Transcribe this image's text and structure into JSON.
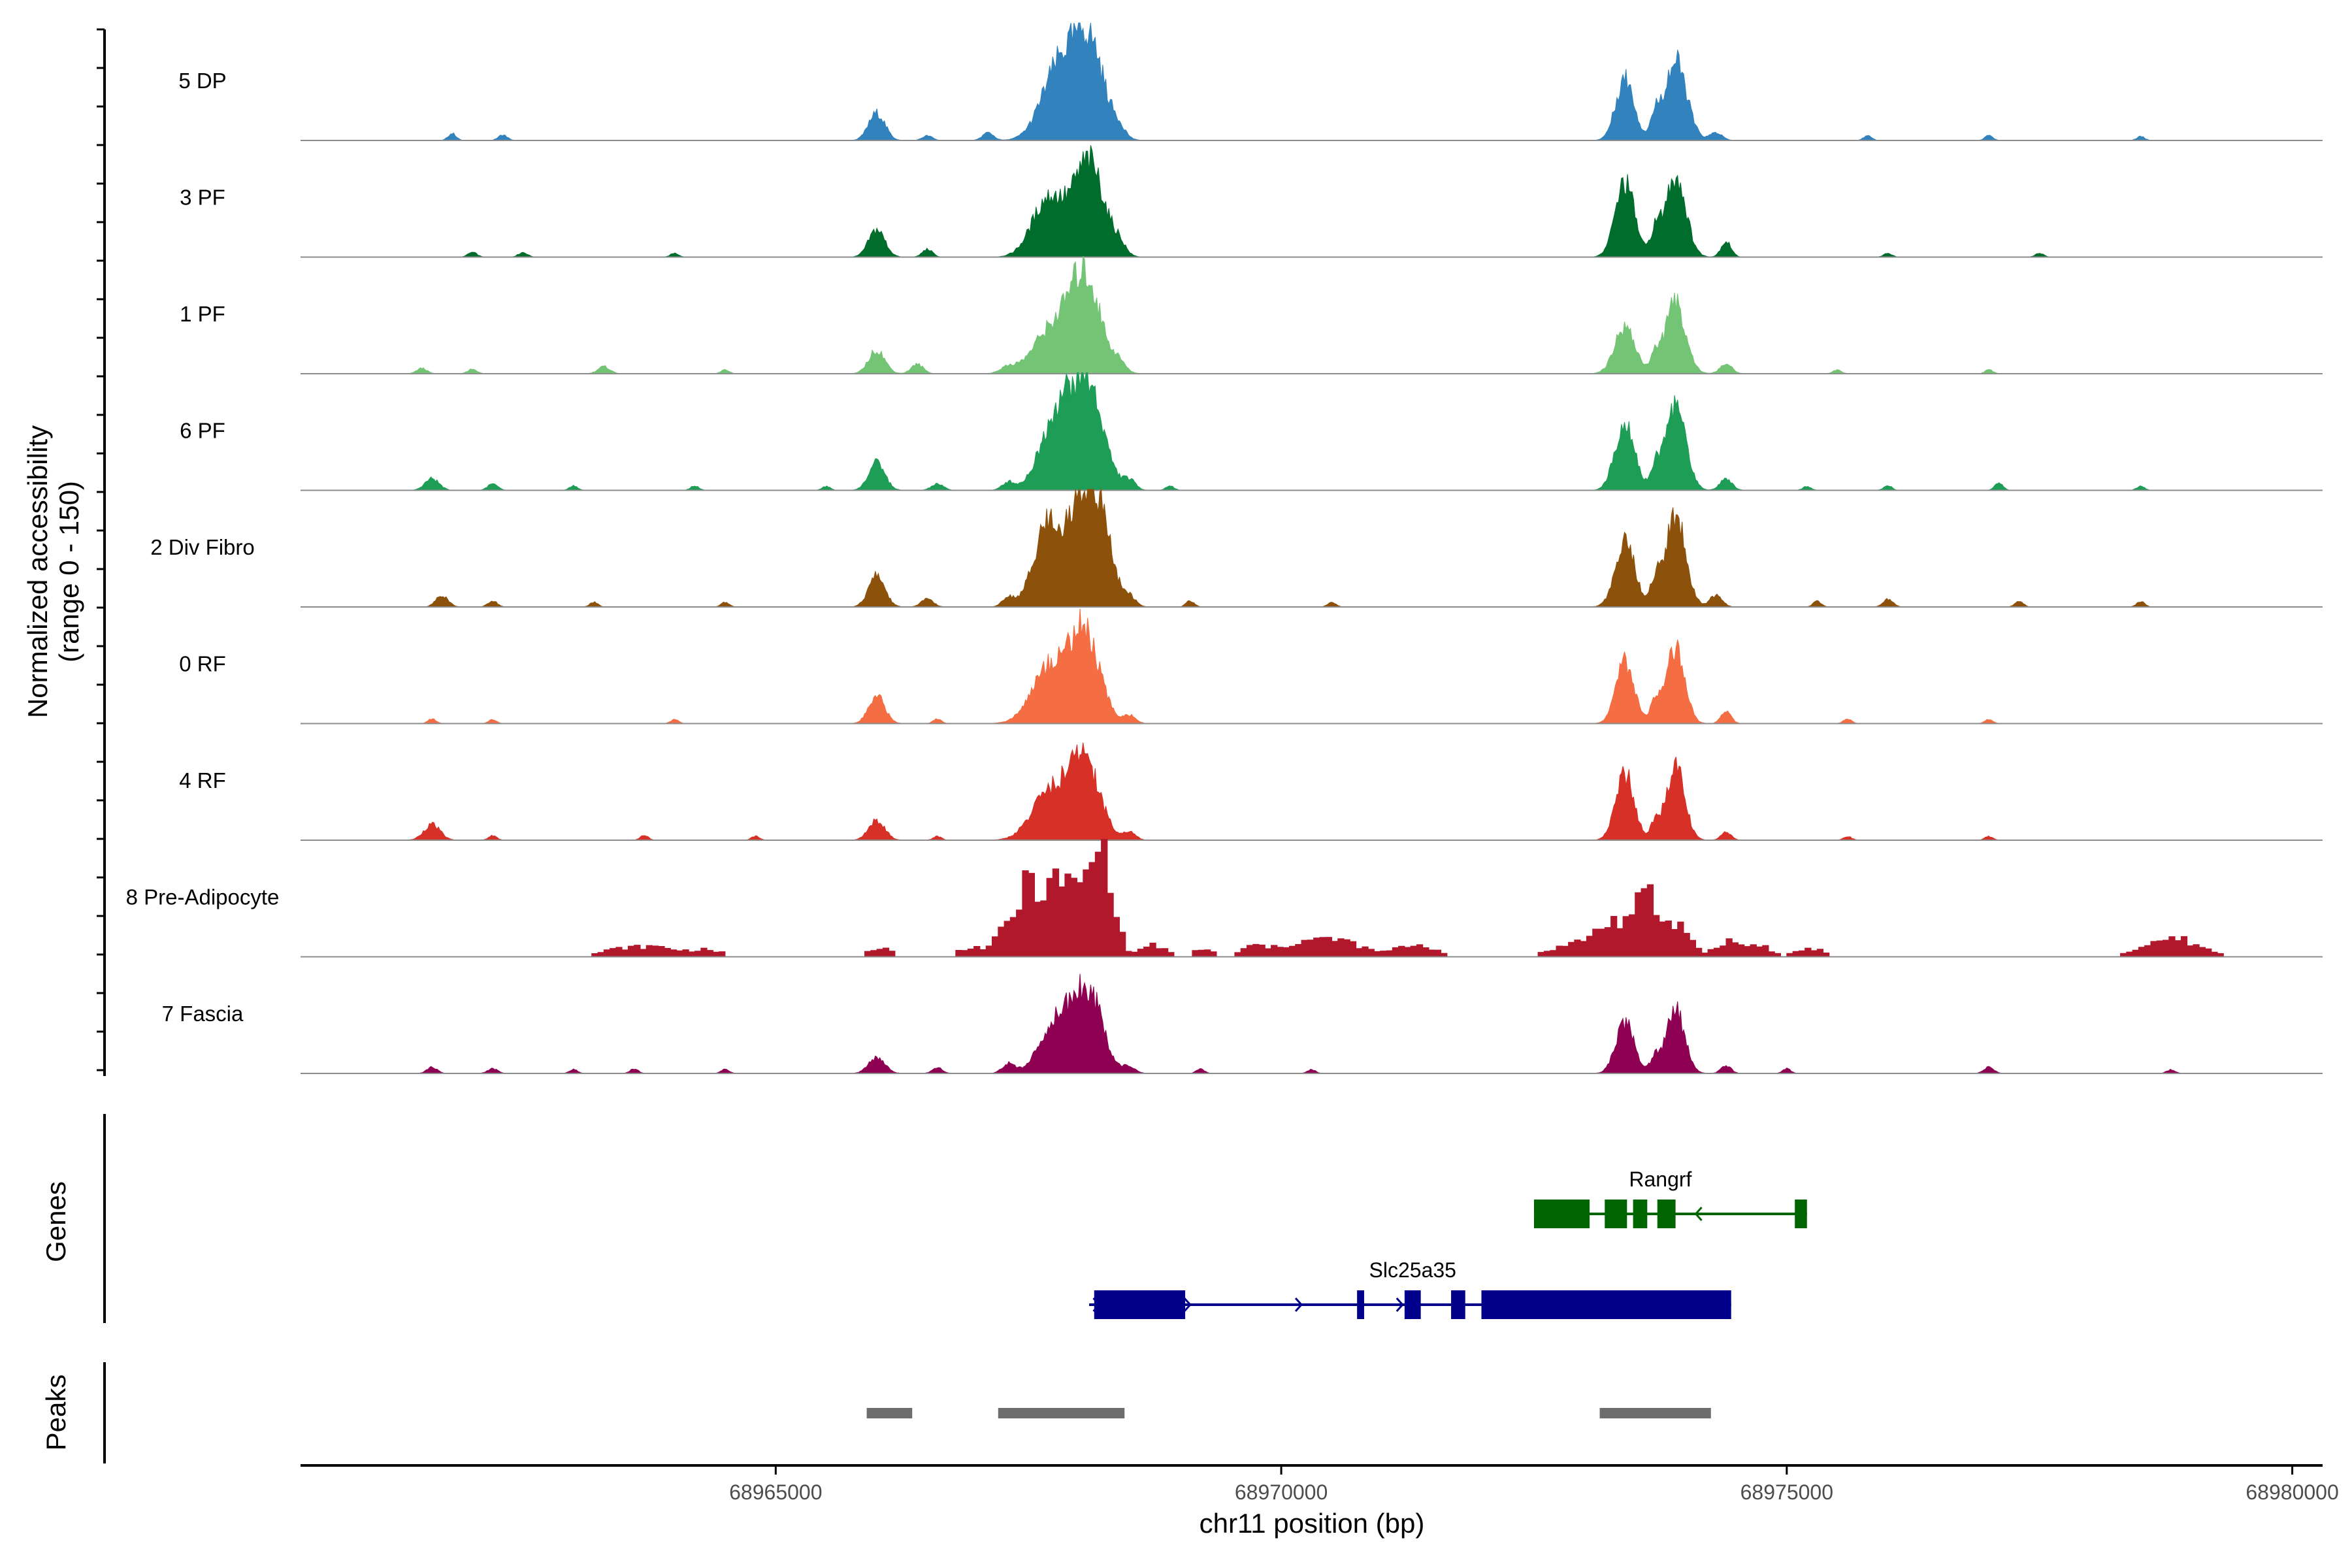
{
  "chart_data": {
    "type": "area",
    "title": "",
    "chromosome": "chr11",
    "xlabel": "chr11 position (bp)",
    "ylabel": "Normalized accessibility",
    "ylabel_range": "(range 0 - 150)",
    "xlim": [
      68960300,
      68980300
    ],
    "ylim": [
      0,
      150
    ],
    "x_ticks": [
      68965000,
      68970000,
      68975000,
      68980000
    ],
    "x_tick_labels": [
      "68965000",
      "68970000",
      "68975000",
      "68980000"
    ],
    "tracks": [
      {
        "name": "5 DP",
        "color": "#3182bd",
        "style": "smooth",
        "peaks": [
          [
            68961800,
            9,
            40
          ],
          [
            68962300,
            7,
            45
          ],
          [
            68966000,
            35,
            80
          ],
          [
            68966500,
            6,
            50
          ],
          [
            68967100,
            10,
            55
          ],
          [
            68967800,
            90,
            170
          ],
          [
            68968100,
            120,
            150
          ],
          [
            68968400,
            10,
            60
          ],
          [
            68973400,
            80,
            90
          ],
          [
            68973700,
            25,
            50
          ],
          [
            68973900,
            100,
            110
          ],
          [
            68974300,
            10,
            60
          ],
          [
            68975800,
            6,
            40
          ],
          [
            68977000,
            6,
            40
          ],
          [
            68978500,
            5,
            40
          ]
        ]
      },
      {
        "name": "3 PF",
        "color": "#006d2c",
        "style": "smooth",
        "peaks": [
          [
            68962000,
            6,
            45
          ],
          [
            68962500,
            6,
            45
          ],
          [
            68964000,
            5,
            40
          ],
          [
            68966000,
            35,
            80
          ],
          [
            68966500,
            10,
            50
          ],
          [
            68967700,
            75,
            160
          ],
          [
            68968100,
            120,
            150
          ],
          [
            68968400,
            12,
            60
          ],
          [
            68973400,
            95,
            95
          ],
          [
            68973700,
            30,
            50
          ],
          [
            68973900,
            105,
            100
          ],
          [
            68974400,
            20,
            50
          ],
          [
            68976000,
            5,
            40
          ],
          [
            68977500,
            5,
            40
          ]
        ]
      },
      {
        "name": "1 PF",
        "color": "#74c476",
        "style": "smooth",
        "peaks": [
          [
            68961500,
            7,
            50
          ],
          [
            68962000,
            6,
            45
          ],
          [
            68963300,
            9,
            60
          ],
          [
            68964500,
            5,
            40
          ],
          [
            68966000,
            30,
            80
          ],
          [
            68966400,
            12,
            60
          ],
          [
            68967300,
            8,
            80
          ],
          [
            68967700,
            50,
            170
          ],
          [
            68968050,
            125,
            160
          ],
          [
            68968400,
            10,
            60
          ],
          [
            68973400,
            60,
            100
          ],
          [
            68973700,
            20,
            50
          ],
          [
            68973900,
            90,
            100
          ],
          [
            68974400,
            12,
            60
          ],
          [
            68975500,
            5,
            40
          ],
          [
            68977000,
            5,
            40
          ]
        ]
      },
      {
        "name": "6 PF",
        "color": "#1d9d55",
        "style": "smooth",
        "peaks": [
          [
            68961600,
            15,
            70
          ],
          [
            68962200,
            8,
            50
          ],
          [
            68963000,
            6,
            40
          ],
          [
            68964200,
            6,
            40
          ],
          [
            68965500,
            5,
            40
          ],
          [
            68966000,
            35,
            80
          ],
          [
            68966600,
            8,
            60
          ],
          [
            68967300,
            10,
            60
          ],
          [
            68967800,
            100,
            170
          ],
          [
            68968100,
            120,
            150
          ],
          [
            68968500,
            12,
            60
          ],
          [
            68968900,
            6,
            40
          ],
          [
            68973400,
            90,
            95
          ],
          [
            68973700,
            25,
            50
          ],
          [
            68973900,
            110,
            100
          ],
          [
            68974400,
            15,
            60
          ],
          [
            68975200,
            5,
            40
          ],
          [
            68976000,
            6,
            40
          ],
          [
            68977100,
            10,
            40
          ],
          [
            68978500,
            5,
            40
          ]
        ]
      },
      {
        "name": "2 Div Fibro",
        "color": "#8c510a",
        "style": "smooth",
        "peaks": [
          [
            68961700,
            15,
            60
          ],
          [
            68962200,
            8,
            45
          ],
          [
            68963200,
            6,
            40
          ],
          [
            68964500,
            6,
            40
          ],
          [
            68966000,
            40,
            80
          ],
          [
            68966500,
            10,
            60
          ],
          [
            68967300,
            12,
            60
          ],
          [
            68967700,
            110,
            140
          ],
          [
            68968000,
            105,
            110
          ],
          [
            68968200,
            120,
            120
          ],
          [
            68968500,
            12,
            60
          ],
          [
            68969100,
            8,
            40
          ],
          [
            68970500,
            6,
            40
          ],
          [
            68973400,
            85,
            95
          ],
          [
            68973700,
            30,
            50
          ],
          [
            68973900,
            115,
            100
          ],
          [
            68974300,
            15,
            60
          ],
          [
            68975300,
            7,
            40
          ],
          [
            68976000,
            10,
            50
          ],
          [
            68977300,
            8,
            40
          ],
          [
            68978500,
            7,
            40
          ]
        ]
      },
      {
        "name": "0 RF",
        "color": "#f46d43",
        "style": "smooth",
        "peaks": [
          [
            68961600,
            6,
            40
          ],
          [
            68962200,
            5,
            40
          ],
          [
            68964000,
            5,
            40
          ],
          [
            68966000,
            35,
            80
          ],
          [
            68966600,
            6,
            40
          ],
          [
            68967700,
            70,
            170
          ],
          [
            68968050,
            115,
            150
          ],
          [
            68968500,
            10,
            60
          ],
          [
            68973400,
            80,
            90
          ],
          [
            68973700,
            25,
            50
          ],
          [
            68973900,
            95,
            90
          ],
          [
            68974400,
            15,
            50
          ],
          [
            68975600,
            6,
            40
          ],
          [
            68977000,
            5,
            40
          ]
        ]
      },
      {
        "name": "4 RF",
        "color": "#d73027",
        "style": "smooth",
        "peaks": [
          [
            68961600,
            20,
            80
          ],
          [
            68962200,
            6,
            40
          ],
          [
            68963700,
            6,
            40
          ],
          [
            68964800,
            5,
            40
          ],
          [
            68966000,
            25,
            80
          ],
          [
            68966600,
            5,
            40
          ],
          [
            68967700,
            60,
            170
          ],
          [
            68968050,
            105,
            150
          ],
          [
            68968500,
            10,
            60
          ],
          [
            68973400,
            85,
            90
          ],
          [
            68973700,
            20,
            50
          ],
          [
            68973900,
            95,
            90
          ],
          [
            68974400,
            10,
            50
          ],
          [
            68975600,
            5,
            40
          ],
          [
            68977000,
            5,
            40
          ]
        ]
      },
      {
        "name": "8 Pre-Adipocyte",
        "color": "#b2182b",
        "style": "blocky",
        "peaks": [
          [
            68963400,
            8,
            180
          ],
          [
            68963800,
            12,
            220
          ],
          [
            68964300,
            8,
            150
          ],
          [
            68966000,
            12,
            120
          ],
          [
            68966900,
            12,
            120
          ],
          [
            68967300,
            40,
            130
          ],
          [
            68967500,
            75,
            100
          ],
          [
            68967800,
            100,
            140
          ],
          [
            68968100,
            90,
            100
          ],
          [
            68968250,
            95,
            90
          ],
          [
            68968700,
            15,
            120
          ],
          [
            68969200,
            10,
            100
          ],
          [
            68969700,
            12,
            120
          ],
          [
            68970200,
            18,
            250
          ],
          [
            68970600,
            15,
            200
          ],
          [
            68971300,
            15,
            200
          ],
          [
            68972800,
            12,
            200
          ],
          [
            68973300,
            45,
            220
          ],
          [
            68973600,
            60,
            100
          ],
          [
            68973900,
            40,
            120
          ],
          [
            68974400,
            20,
            120
          ],
          [
            68974700,
            15,
            100
          ],
          [
            68975200,
            10,
            150
          ],
          [
            68978500,
            10,
            160
          ],
          [
            68978800,
            15,
            150
          ],
          [
            68979000,
            10,
            200
          ]
        ]
      },
      {
        "name": "7 Fascia",
        "color": "#8e0152",
        "style": "smooth",
        "peaks": [
          [
            68961600,
            8,
            50
          ],
          [
            68962200,
            6,
            50
          ],
          [
            68963000,
            5,
            40
          ],
          [
            68963600,
            6,
            40
          ],
          [
            68964500,
            5,
            40
          ],
          [
            68966000,
            20,
            80
          ],
          [
            68966600,
            7,
            50
          ],
          [
            68967300,
            12,
            60
          ],
          [
            68967800,
            70,
            170
          ],
          [
            68968100,
            95,
            140
          ],
          [
            68968500,
            8,
            60
          ],
          [
            68969200,
            6,
            40
          ],
          [
            68970300,
            5,
            40
          ],
          [
            68973400,
            65,
            90
          ],
          [
            68973700,
            20,
            50
          ],
          [
            68973900,
            80,
            90
          ],
          [
            68974400,
            10,
            50
          ],
          [
            68975000,
            6,
            40
          ],
          [
            68977000,
            8,
            50
          ],
          [
            68978800,
            5,
            40
          ]
        ]
      }
    ],
    "genes": {
      "title": "Genes",
      "items": [
        {
          "name": "Rangrf",
          "strand": "-",
          "color": "#006400",
          "start": 68972500,
          "end": 68975200,
          "exons": [
            [
              68972500,
              68973050
            ],
            [
              68973200,
              68973420
            ],
            [
              68973480,
              68973620
            ],
            [
              68973720,
              68973900
            ],
            [
              68975080,
              68975200
            ]
          ]
        },
        {
          "name": "Slc25a35",
          "strand": "+",
          "color": "#00008b",
          "start": 68968100,
          "end": 68974450,
          "exons": [
            [
              68968150,
              68969050
            ],
            [
              68970750,
              68970820
            ],
            [
              68971220,
              68971380
            ],
            [
              68971680,
              68971820
            ],
            [
              68971980,
              68974450
            ]
          ]
        }
      ]
    },
    "peaks_track": {
      "title": "Peaks",
      "color": "#6d6d6d",
      "regions": [
        [
          68965900,
          68966350
        ],
        [
          68967200,
          68968450
        ],
        [
          68973150,
          68974250
        ]
      ]
    }
  }
}
